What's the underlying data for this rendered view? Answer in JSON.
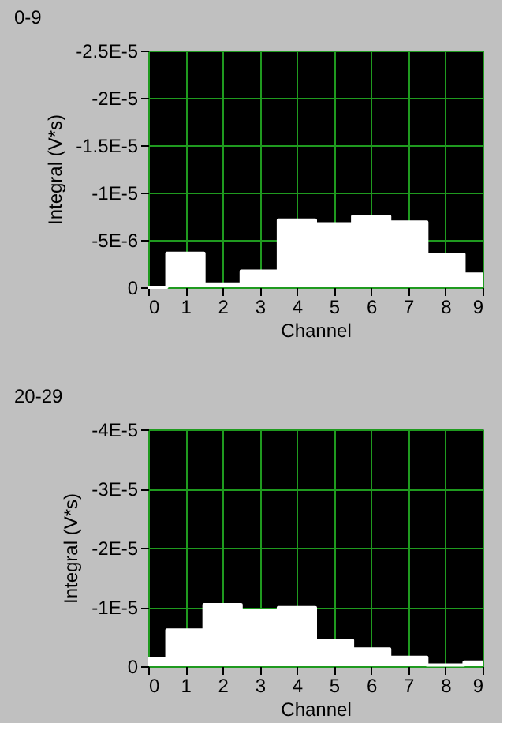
{
  "chart_data": [
    {
      "type": "area",
      "title": "0-9",
      "xlabel": "Channel",
      "ylabel": "Integral (V*s)",
      "x": [
        0,
        1,
        2,
        3,
        4,
        5,
        6,
        7,
        8,
        9
      ],
      "series": [
        {
          "color": "#ffffff",
          "values": [
            0,
            -3.6e-06,
            -3.5e-07,
            -1.7e-06,
            -7.1e-06,
            -6.7e-06,
            -7.5e-06,
            -6.9e-06,
            -3.5e-06,
            -1.4e-06
          ]
        }
      ],
      "xlim": [
        0,
        9
      ],
      "xticks": [
        0,
        1,
        2,
        3,
        4,
        5,
        6,
        7,
        8,
        9
      ],
      "ylim": [
        0,
        -2.5e-05
      ],
      "yticks": [
        {
          "value": 0,
          "label": "0"
        },
        {
          "value": -5e-06,
          "label": "-5E-6"
        },
        {
          "value": -1e-05,
          "label": "-1E-5"
        },
        {
          "value": -1.5e-05,
          "label": "-1.5E-5"
        },
        {
          "value": -2e-05,
          "label": "-2E-5"
        },
        {
          "value": -2.5e-05,
          "label": "-2.5E-5"
        }
      ],
      "grid": true
    },
    {
      "type": "area",
      "title": "20-29",
      "xlabel": "Channel",
      "ylabel": "Integral (V*s)",
      "x": [
        0,
        1,
        2,
        3,
        4,
        5,
        6,
        7,
        8,
        9
      ],
      "series": [
        {
          "color": "#ffffff",
          "values": [
            -1.2e-06,
            -6.1e-06,
            -1.04e-05,
            -9.4e-06,
            -9.9e-06,
            -4.4e-06,
            -2.9e-06,
            -1.5e-06,
            -2e-07,
            -7e-07
          ]
        }
      ],
      "xlim": [
        0,
        9
      ],
      "xticks": [
        0,
        1,
        2,
        3,
        4,
        5,
        6,
        7,
        8,
        9
      ],
      "ylim": [
        0,
        -4e-05
      ],
      "yticks": [
        {
          "value": 0,
          "label": "0"
        },
        {
          "value": -1e-05,
          "label": "-1E-5"
        },
        {
          "value": -2e-05,
          "label": "-2E-5"
        },
        {
          "value": -3e-05,
          "label": "-3E-5"
        },
        {
          "value": -4e-05,
          "label": "-4E-5"
        }
      ],
      "grid": true
    }
  ]
}
